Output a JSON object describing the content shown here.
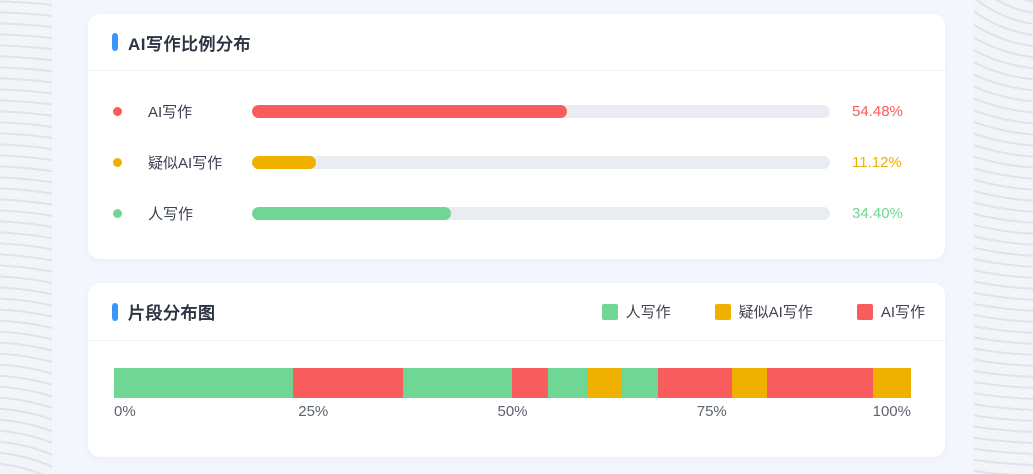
{
  "colors": {
    "accent_blue": "#3d96f7",
    "red": "#f95c5c",
    "yellow": "#f0b000",
    "green": "#70d694",
    "track": "#e9edf2"
  },
  "ratio_card": {
    "title": "AI写作比例分布",
    "rows": [
      {
        "label": "AI写作",
        "value": 54.48,
        "display": "54.48%",
        "color_key": "red"
      },
      {
        "label": "疑似AI写作",
        "value": 11.12,
        "display": "11.12%",
        "color_key": "yellow"
      },
      {
        "label": "人写作",
        "value": 34.4,
        "display": "34.40%",
        "color_key": "green"
      }
    ]
  },
  "segment_card": {
    "title": "片段分布图",
    "legend": [
      {
        "label": "人写作",
        "color_key": "green"
      },
      {
        "label": "疑似AI写作",
        "color_key": "yellow"
      },
      {
        "label": "AI写作",
        "color_key": "red"
      }
    ],
    "axis_ticks": [
      "0%",
      "25%",
      "50%",
      "75%",
      "100%"
    ],
    "segments": [
      {
        "label": "人写作",
        "color_key": "green",
        "width_pct": 22.5
      },
      {
        "label": "AI写作",
        "color_key": "red",
        "width_pct": 13.8
      },
      {
        "label": "人写作",
        "color_key": "green",
        "width_pct": 13.7
      },
      {
        "label": "AI写作",
        "color_key": "red",
        "width_pct": 4.5
      },
      {
        "label": "人写作",
        "color_key": "green",
        "width_pct": 4.8
      },
      {
        "label": "疑似AI写作",
        "color_key": "yellow",
        "width_pct": 4.5
      },
      {
        "label": "人写作",
        "color_key": "green",
        "width_pct": 4.5
      },
      {
        "label": "AI写作",
        "color_key": "red",
        "width_pct": 9.2
      },
      {
        "label": "疑似AI写作",
        "color_key": "yellow",
        "width_pct": 4.4
      },
      {
        "label": "AI写作",
        "color_key": "red",
        "width_pct": 13.4
      },
      {
        "label": "疑似AI写作",
        "color_key": "yellow",
        "width_pct": 4.7
      }
    ]
  },
  "chart_data": [
    {
      "type": "bar",
      "orientation": "horizontal",
      "title": "AI写作比例分布",
      "categories": [
        "AI写作",
        "疑似AI写作",
        "人写作"
      ],
      "values": [
        54.48,
        11.12,
        34.4
      ],
      "value_labels": [
        "54.48%",
        "11.12%",
        "34.40%"
      ],
      "colors": [
        "#f95c5c",
        "#f0b000",
        "#70d694"
      ],
      "xlim": [
        0,
        100
      ],
      "unit": "%",
      "grid": false,
      "legend_position": "none"
    },
    {
      "type": "bar",
      "subtype": "single-row-stacked-timeline",
      "title": "片段分布图",
      "legend": [
        "人写作",
        "疑似AI写作",
        "AI写作"
      ],
      "legend_colors": [
        "#70d694",
        "#f0b000",
        "#f95c5c"
      ],
      "legend_position": "top-right",
      "x_ticks": [
        "0%",
        "25%",
        "50%",
        "75%",
        "100%"
      ],
      "xlim": [
        0,
        100
      ],
      "grid": false,
      "segments": [
        {
          "label": "人写作",
          "width_pct": 22.5
        },
        {
          "label": "AI写作",
          "width_pct": 13.8
        },
        {
          "label": "人写作",
          "width_pct": 13.7
        },
        {
          "label": "AI写作",
          "width_pct": 4.5
        },
        {
          "label": "人写作",
          "width_pct": 4.8
        },
        {
          "label": "疑似AI写作",
          "width_pct": 4.5
        },
        {
          "label": "人写作",
          "width_pct": 4.5
        },
        {
          "label": "AI写作",
          "width_pct": 9.2
        },
        {
          "label": "疑似AI写作",
          "width_pct": 4.4
        },
        {
          "label": "AI写作",
          "width_pct": 13.4
        },
        {
          "label": "疑似AI写作",
          "width_pct": 4.7
        }
      ]
    }
  ]
}
